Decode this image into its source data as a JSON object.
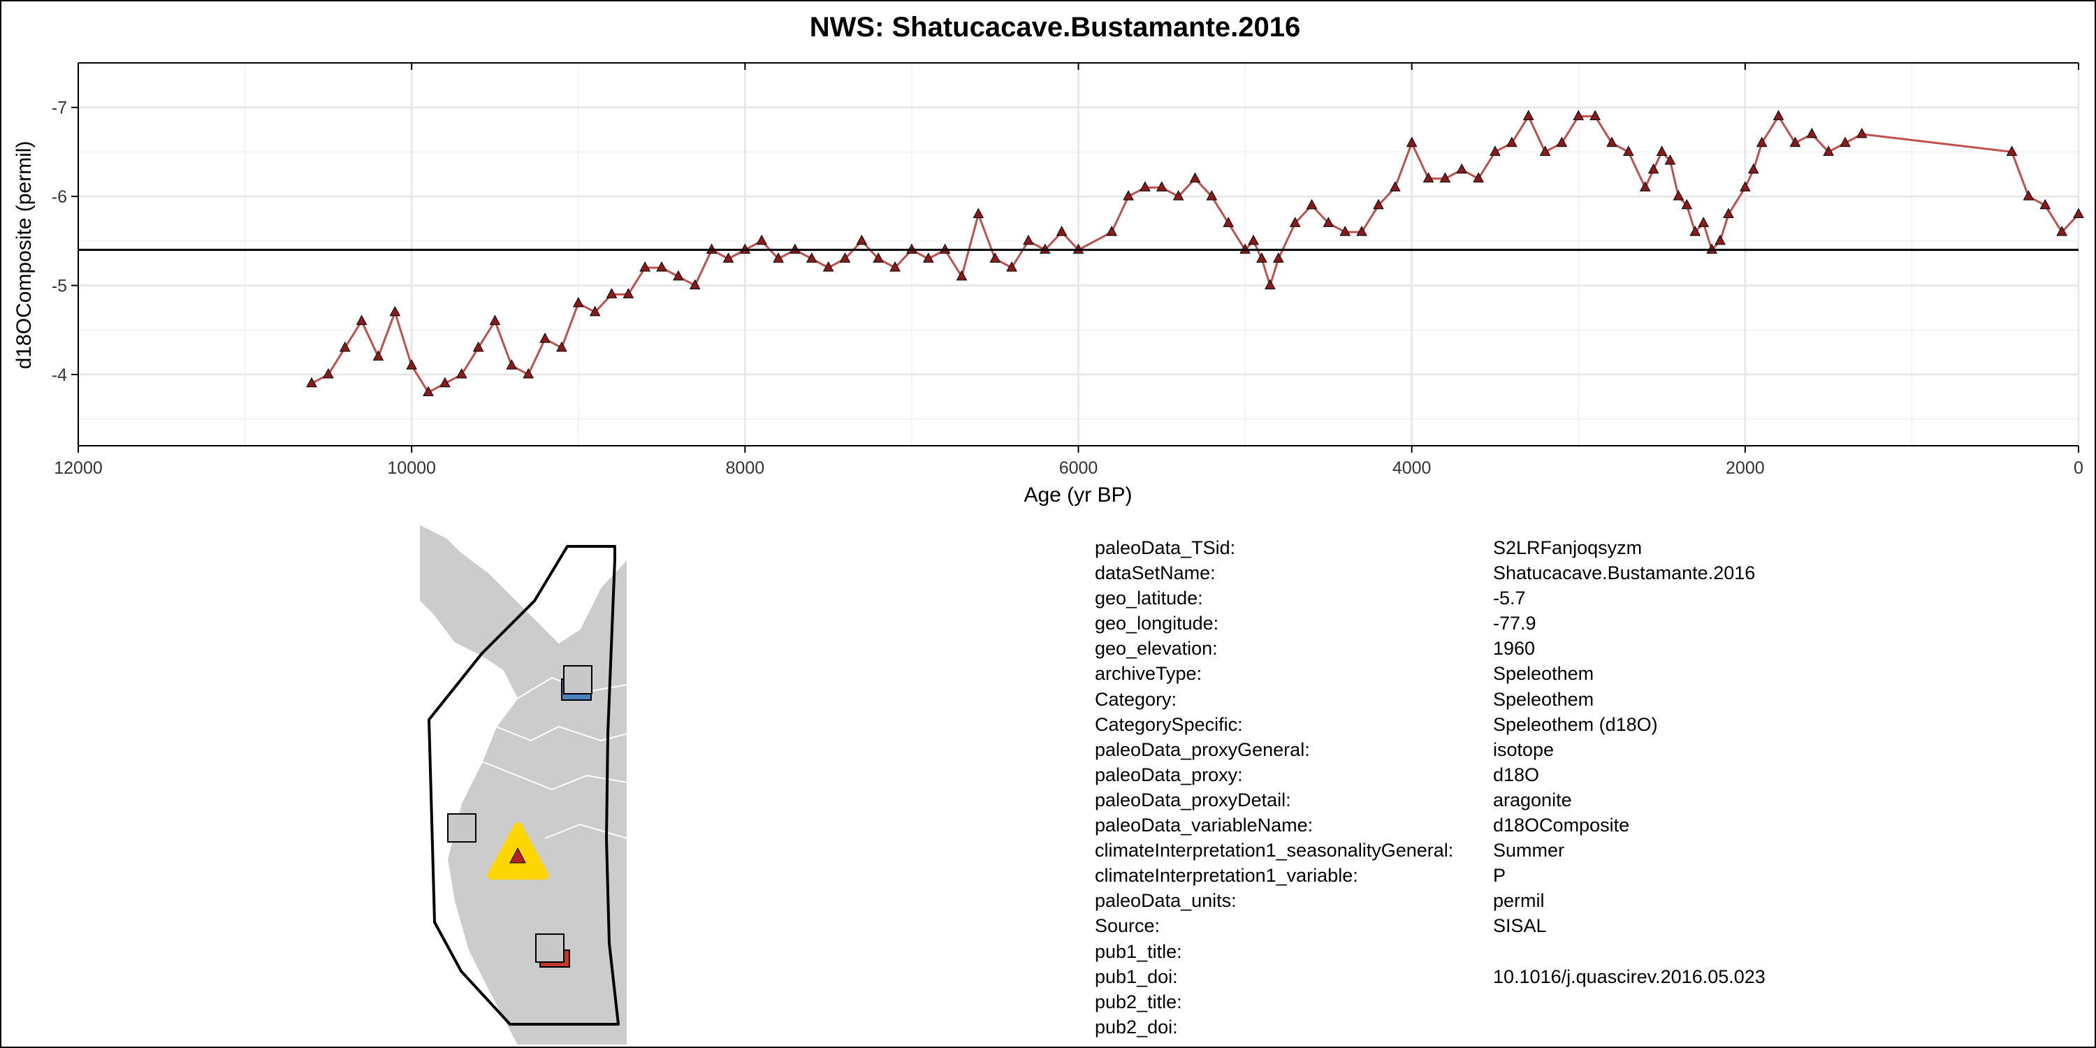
{
  "chart_data": {
    "type": "line",
    "title": "NWS: Shatucacave.Bustamante.2016",
    "xlabel": "Age (yr BP)",
    "ylabel": "d18OComposite (permil)",
    "xlim": [
      12000,
      0
    ],
    "ylim": [
      -3.2,
      -7.5
    ],
    "y_reversed": true,
    "x_ticks": [
      12000,
      10000,
      8000,
      6000,
      4000,
      2000,
      0
    ],
    "x_tick_labels": [
      "12000",
      "10000",
      "8000",
      "6000",
      "4000",
      "2000",
      "0"
    ],
    "y_ticks": [
      -4,
      -5,
      -6,
      -7
    ],
    "y_tick_labels": [
      "-4",
      "-5",
      "-6",
      "-7"
    ],
    "grid": true,
    "reference_line_y": -5.4,
    "series": [
      {
        "color": "#c0504d",
        "marker": "triangle",
        "marker_fill": "#8b1a1a",
        "x": [
          10600,
          10500,
          10400,
          10300,
          10200,
          10100,
          10000,
          9900,
          9800,
          9700,
          9600,
          9500,
          9400,
          9300,
          9200,
          9100,
          9000,
          8900,
          8800,
          8700,
          8600,
          8500,
          8400,
          8300,
          8200,
          8100,
          8000,
          7900,
          7800,
          7700,
          7600,
          7500,
          7400,
          7300,
          7200,
          7100,
          7000,
          6900,
          6800,
          6700,
          6600,
          6500,
          6400,
          6300,
          6200,
          6100,
          6000,
          5800,
          5700,
          5600,
          5500,
          5400,
          5300,
          5200,
          5100,
          5000,
          4950,
          4900,
          4850,
          4800,
          4700,
          4600,
          4500,
          4400,
          4300,
          4200,
          4100,
          4000,
          3900,
          3800,
          3700,
          3600,
          3500,
          3400,
          3300,
          3200,
          3100,
          3000,
          2900,
          2800,
          2700,
          2600,
          2550,
          2500,
          2450,
          2400,
          2350,
          2300,
          2250,
          2200,
          2150,
          2100,
          2000,
          1950,
          1900,
          1800,
          1700,
          1600,
          1500,
          1400,
          1300,
          400,
          300,
          200,
          100,
          0
        ],
        "y": [
          -3.9,
          -4.0,
          -4.3,
          -4.6,
          -4.2,
          -4.7,
          -4.1,
          -3.8,
          -3.9,
          -4.0,
          -4.3,
          -4.6,
          -4.1,
          -4.0,
          -4.4,
          -4.3,
          -4.8,
          -4.7,
          -4.9,
          -4.9,
          -5.2,
          -5.2,
          -5.1,
          -5.0,
          -5.4,
          -5.3,
          -5.4,
          -5.5,
          -5.3,
          -5.4,
          -5.3,
          -5.2,
          -5.3,
          -5.5,
          -5.3,
          -5.2,
          -5.4,
          -5.3,
          -5.4,
          -5.1,
          -5.8,
          -5.3,
          -5.2,
          -5.5,
          -5.4,
          -5.6,
          -5.4,
          -5.6,
          -6.0,
          -6.1,
          -6.1,
          -6.0,
          -6.2,
          -6.0,
          -5.7,
          -5.4,
          -5.5,
          -5.3,
          -5.0,
          -5.3,
          -5.7,
          -5.9,
          -5.7,
          -5.6,
          -5.6,
          -5.9,
          -6.1,
          -6.6,
          -6.2,
          -6.2,
          -6.3,
          -6.2,
          -6.5,
          -6.6,
          -6.9,
          -6.5,
          -6.6,
          -6.9,
          -6.9,
          -6.6,
          -6.5,
          -6.1,
          -6.3,
          -6.5,
          -6.4,
          -6.0,
          -5.9,
          -5.6,
          -5.7,
          -5.4,
          -5.5,
          -5.8,
          -6.1,
          -6.3,
          -6.6,
          -6.9,
          -6.6,
          -6.7,
          -6.5,
          -6.6,
          -6.7,
          -6.5,
          -6.0,
          -5.9,
          -5.6,
          -5.8
        ]
      }
    ]
  },
  "map": {
    "site_marker_color": "#ffd700",
    "site_inner_color": "#b22222",
    "land_color": "#cccccc",
    "other_site_color": "#c8c8c8"
  },
  "metadata": [
    {
      "key": "paleoData_TSid:",
      "value": "S2LRFanjoqsyzm"
    },
    {
      "key": "dataSetName:",
      "value": "Shatucacave.Bustamante.2016"
    },
    {
      "key": "geo_latitude:",
      "value": "-5.7"
    },
    {
      "key": "geo_longitude:",
      "value": "-77.9"
    },
    {
      "key": "geo_elevation:",
      "value": "1960"
    },
    {
      "key": "archiveType:",
      "value": "Speleothem"
    },
    {
      "key": "Category:",
      "value": "Speleothem"
    },
    {
      "key": "CategorySpecific:",
      "value": "Speleothem (d18O)"
    },
    {
      "key": "paleoData_proxyGeneral:",
      "value": "isotope"
    },
    {
      "key": "paleoData_proxy:",
      "value": "d18O"
    },
    {
      "key": "paleoData_proxyDetail:",
      "value": "aragonite"
    },
    {
      "key": "paleoData_variableName:",
      "value": "d18OComposite"
    },
    {
      "key": "climateInterpretation1_seasonalityGeneral:",
      "value": "Summer"
    },
    {
      "key": "climateInterpretation1_variable:",
      "value": "P"
    },
    {
      "key": "paleoData_units:",
      "value": "permil"
    },
    {
      "key": "Source:",
      "value": "SISAL"
    },
    {
      "key": "pub1_title:",
      "value": ""
    },
    {
      "key": "pub1_doi:",
      "value": "10.1016/j.quascirev.2016.05.023"
    },
    {
      "key": "pub2_title:",
      "value": ""
    },
    {
      "key": "pub2_doi:",
      "value": ""
    }
  ]
}
